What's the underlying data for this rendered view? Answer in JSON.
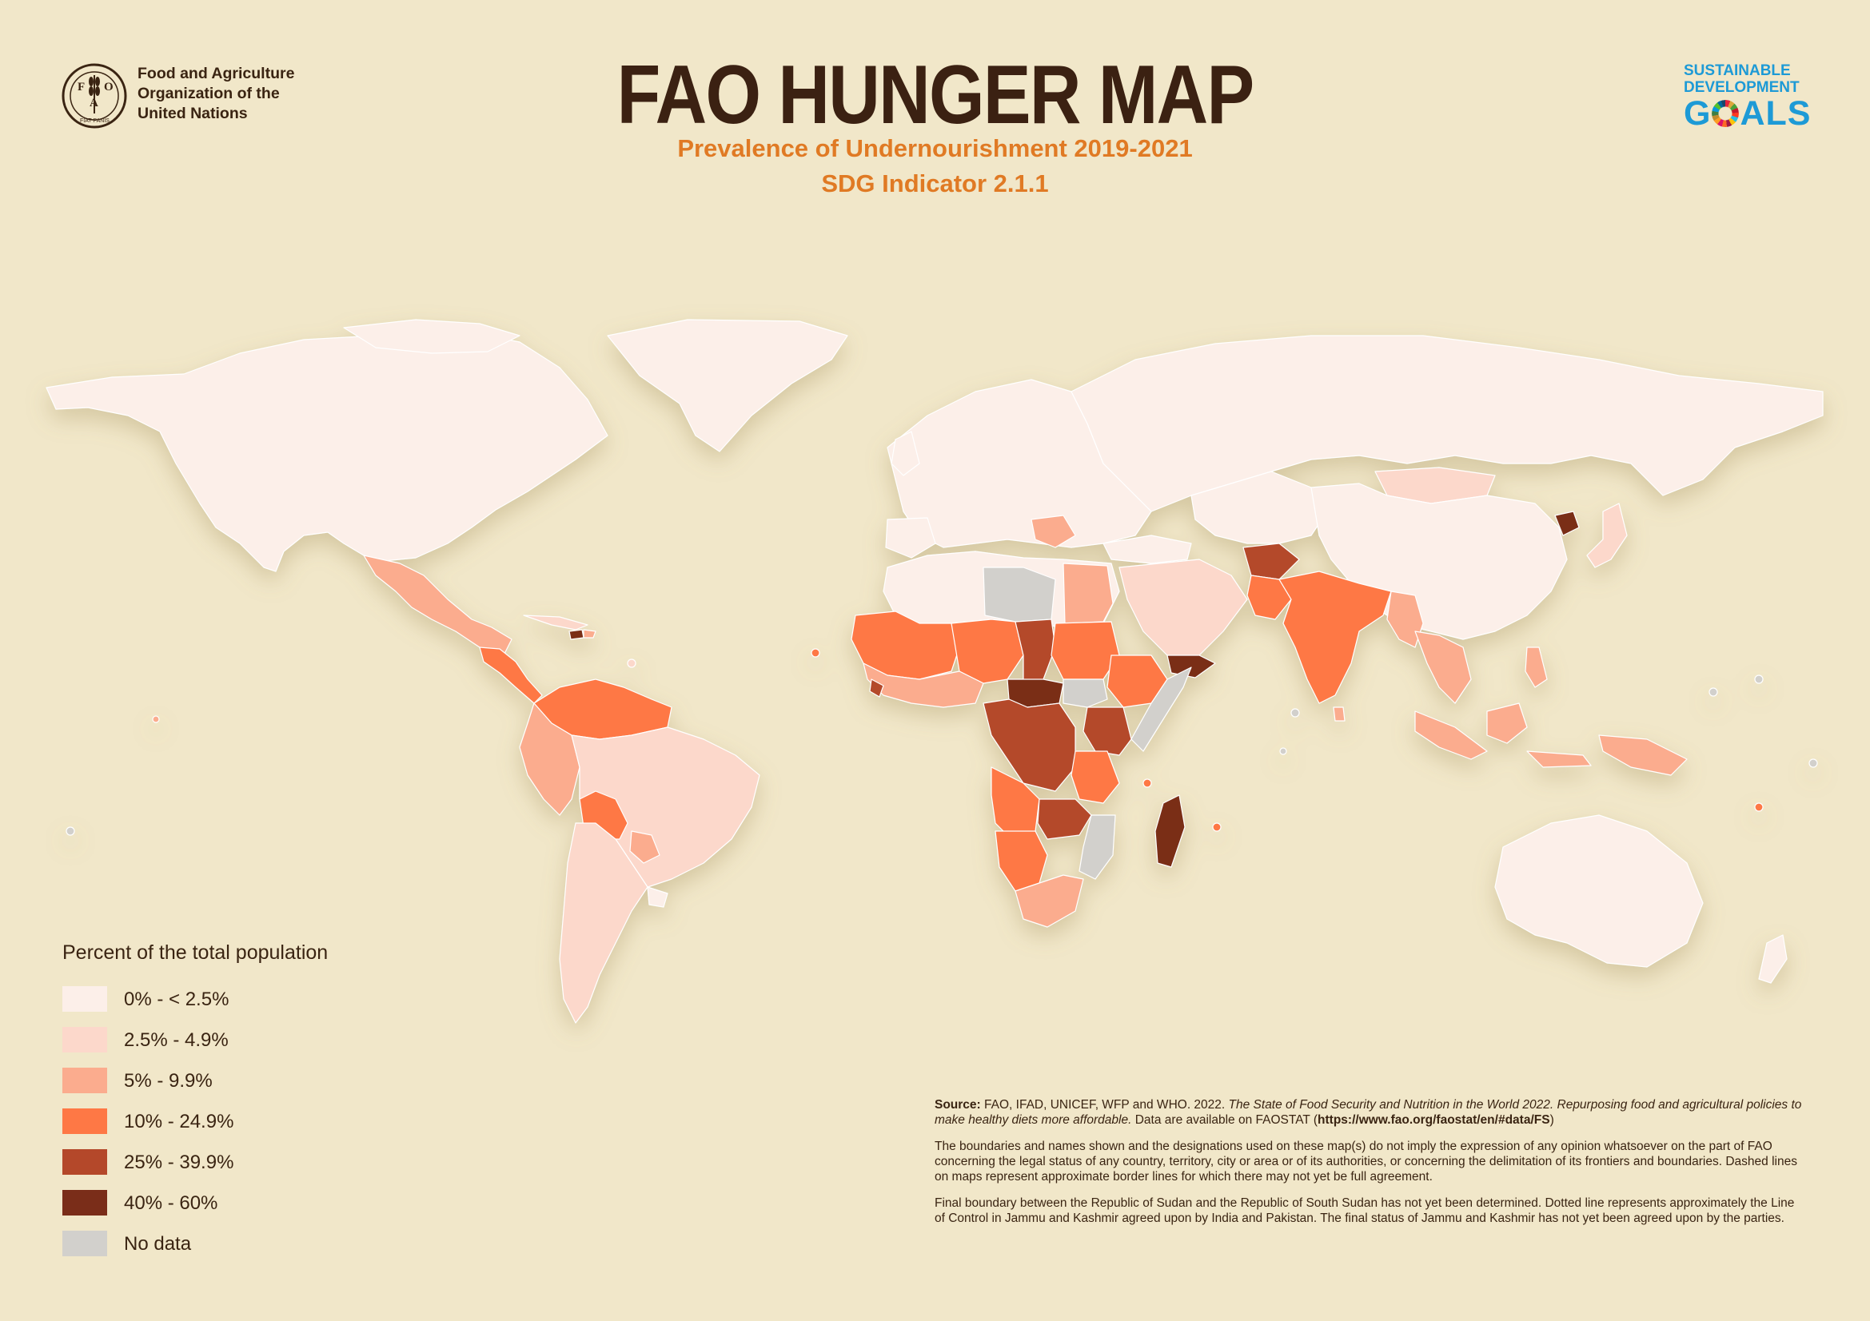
{
  "header": {
    "org_name": [
      "Food and Agriculture",
      "Organization of the",
      "United Nations"
    ],
    "logo_letters": "F A O",
    "logo_motto": "FIAT PANIS",
    "title": "FAO HUNGER MAP",
    "subtitle_1": "Prevalence of Undernourishment 2019-2021",
    "subtitle_2": "SDG Indicator 2.1.1",
    "sdg_logo": {
      "line1": "SUSTAINABLE",
      "line2": "DEVELOPMENT",
      "line3_a": "G",
      "line3_b": "ALS"
    }
  },
  "legend": {
    "title": "Percent of the total population",
    "items": [
      {
        "label": "0% - < 2.5%",
        "color": "#fcefe9"
      },
      {
        "label": "2.5% - 4.9%",
        "color": "#fcd8cb"
      },
      {
        "label": "5% - 9.9%",
        "color": "#fbac8e"
      },
      {
        "label": "10% - 24.9%",
        "color": "#fe7845"
      },
      {
        "label": "25% - 39.9%",
        "color": "#b4482a"
      },
      {
        "label": "40% - 60%",
        "color": "#7a2d19"
      },
      {
        "label": "No data",
        "color": "#d2d0cc"
      }
    ]
  },
  "notes": {
    "source_label": "Source:",
    "source_text": "FAO, IFAD, UNICEF, WFP and WHO. 2022.",
    "source_italic": "The State of Food Security and Nutrition in the World 2022. Repurposing food and agricultural policies to make healthy diets more affordable.",
    "source_data": "Data are available on FAOSTAT (",
    "source_url": "https://www.fao.org/faostat/en/#data/FS",
    "source_close": ")",
    "disclaimer_1": "The boundaries and names shown and the designations used on these map(s) do not imply the expression of any opinion whatsoever on the part of FAO concerning the legal status of any country, territory, city or area or of its authorities, or concerning the delimitation of its frontiers and boundaries. Dashed lines on maps represent approximate border lines for which there may not yet be full agreement.",
    "disclaimer_2": "Final boundary between the Republic of Sudan and the Republic of South Sudan has not yet been determined. Dotted line represents approximately the Line of Control in Jammu and Kashmir agreed upon by India and Pakistan. The final status of Jammu and Kashmir has not yet been agreed upon by the parties."
  },
  "colors": {
    "background": "#f1e7c9",
    "title": "#3b2112",
    "subtitle": "#e07a24",
    "sdg_blue": "#1d9ad6"
  }
}
